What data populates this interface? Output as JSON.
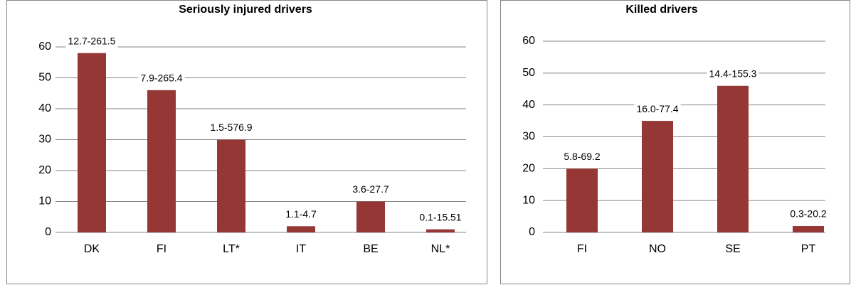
{
  "chart_data": [
    {
      "type": "bar",
      "title": "Seriously injured drivers",
      "categories": [
        "DK",
        "FI",
        "LT*",
        "IT",
        "BE",
        "NL*"
      ],
      "values": [
        58,
        46,
        30,
        2,
        10,
        1
      ],
      "annotations": [
        "12.7-261.5",
        "7.9-265.4",
        "1.5-576.9",
        "1.1-4.7",
        "3.6-27.7",
        "0.1-15.51"
      ],
      "color": "#953735",
      "ylim": [
        0,
        60
      ],
      "yticks": [
        0,
        10,
        20,
        30,
        40,
        50,
        60
      ],
      "grid": true
    },
    {
      "type": "bar",
      "title": "Killed drivers",
      "categories": [
        "FI",
        "NO",
        "SE",
        "PT"
      ],
      "values": [
        20,
        35,
        46,
        2
      ],
      "annotations": [
        "5.8-69.2",
        "16.0-77.4",
        "14.4-155.3",
        "0.3-20.2"
      ],
      "color": "#953735",
      "ylim": [
        0,
        60
      ],
      "yticks": [
        0,
        10,
        20,
        30,
        40,
        50,
        60
      ],
      "grid": true
    }
  ]
}
